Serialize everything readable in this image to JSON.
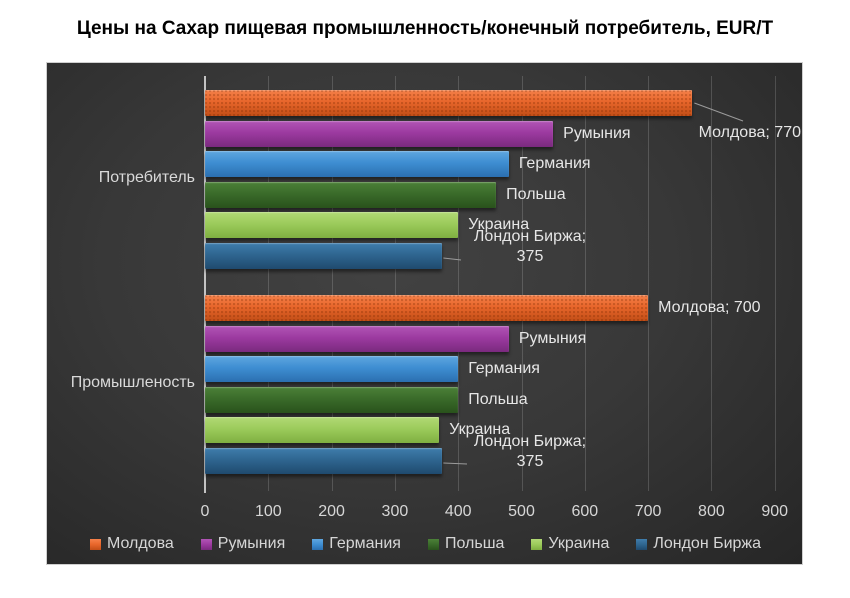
{
  "chart_data": {
    "type": "bar",
    "orientation": "horizontal",
    "title": "Цены на Сахар пищевая промышленность/конечный потребитель, EUR/T",
    "categories": [
      "Потребитель",
      "Промышленость"
    ],
    "series": [
      {
        "name": "Молдова",
        "values": [
          770,
          700
        ],
        "color": "#E8662B",
        "color_light": "#F5814A",
        "color_dark": "#C24E17",
        "texture": true
      },
      {
        "name": "Румыния",
        "values": [
          550,
          480
        ],
        "color": "#9C3AA0",
        "color_light": "#B155B5",
        "color_dark": "#7A2A7E"
      },
      {
        "name": "Германия",
        "values": [
          480,
          400
        ],
        "color": "#3E8ED2",
        "color_light": "#5FA6DF",
        "color_dark": "#2B6FB0"
      },
      {
        "name": "Польша",
        "values": [
          460,
          400
        ],
        "color": "#3A6B2A",
        "color_light": "#4C8138",
        "color_dark": "#29521C"
      },
      {
        "name": "Украина",
        "values": [
          400,
          370
        ],
        "color": "#9CCB5B",
        "color_light": "#B1D975",
        "color_dark": "#7FAF41"
      },
      {
        "name": "Лондон Биржа",
        "values": [
          375,
          375
        ],
        "color": "#2F6690",
        "color_light": "#3F7DAC",
        "color_dark": "#1F4A6E"
      }
    ],
    "xlim": [
      0,
      900
    ],
    "x_ticks": [
      0,
      100,
      200,
      300,
      400,
      500,
      600,
      700,
      800,
      900
    ],
    "grid": true,
    "legend_position": "bottom",
    "background_color": "#333333",
    "text_color": "#D9D9D9",
    "data_labels": [
      [
        "Молдова; 770",
        "Румыния",
        "Германия",
        "Польша",
        "Украина",
        "Лондон Биржа;|375"
      ],
      [
        "Молдова; 700",
        "Румыния",
        "Германия",
        "Польша",
        "Украина",
        "Лондон Биржа;|375"
      ]
    ],
    "label_modes": [
      [
        "callout",
        "inline",
        "inline",
        "inline",
        "inline",
        "twoline"
      ],
      [
        "inline",
        "inline",
        "inline",
        "inline",
        "inline",
        "twoline"
      ]
    ],
    "legend_items": [
      "Молдова",
      "Румыния",
      "Германия",
      "Польша",
      "Украина",
      "Лондон Биржа"
    ]
  }
}
